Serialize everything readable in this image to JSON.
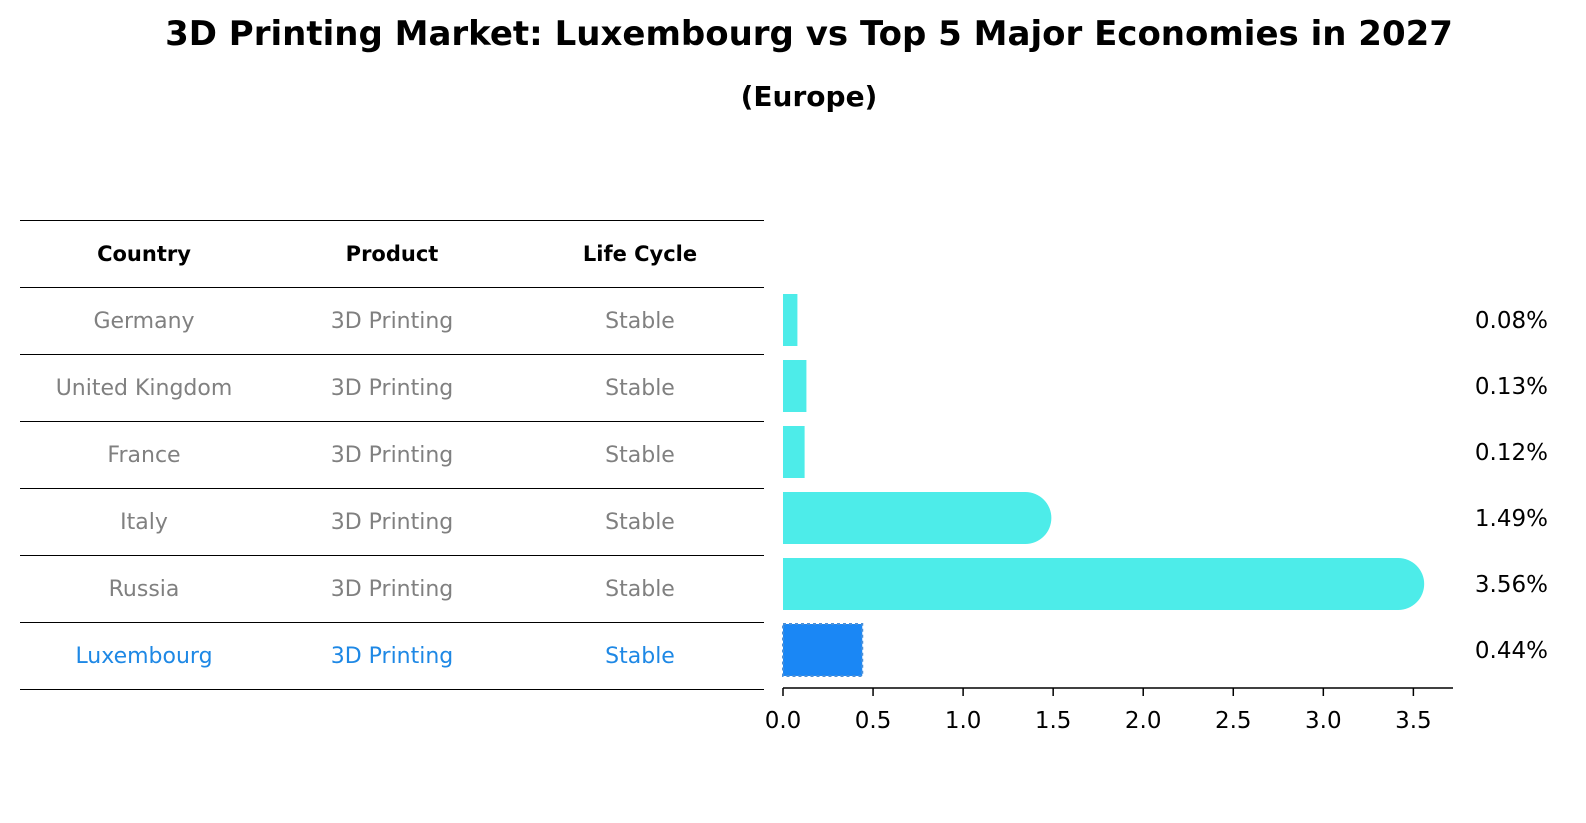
{
  "title": "3D Printing Market: Luxembourg vs Top 5 Major Economies in 2027",
  "subtitle": "(Europe)",
  "table": {
    "headers": [
      "Country",
      "Product",
      "Life Cycle"
    ],
    "rows": [
      [
        "Germany",
        "3D Printing",
        "Stable"
      ],
      [
        "United Kingdom",
        "3D Printing",
        "Stable"
      ],
      [
        "France",
        "3D Printing",
        "Stable"
      ],
      [
        "Italy",
        "3D Printing",
        "Stable"
      ],
      [
        "Russia",
        "3D Printing",
        "Stable"
      ],
      [
        "Luxembourg",
        "3D Printing",
        "Stable"
      ]
    ],
    "highlight_row": 5
  },
  "colors": {
    "bar": "#4dece9",
    "highlight_bar": "#1a87f5",
    "highlight_text": "#1e88e5",
    "muted_text": "#808080"
  },
  "chart_data": {
    "type": "bar",
    "orientation": "horizontal",
    "categories": [
      "Germany",
      "United Kingdom",
      "France",
      "Italy",
      "Russia",
      "Luxembourg"
    ],
    "values": [
      0.08,
      0.13,
      0.12,
      1.49,
      3.56,
      0.44
    ],
    "value_labels": [
      "0.08%",
      "0.13%",
      "0.12%",
      "1.49%",
      "3.56%",
      "0.44%"
    ],
    "xlim": [
      0,
      3.72
    ],
    "xticks": [
      0.0,
      0.5,
      1.0,
      1.5,
      2.0,
      2.5,
      3.0,
      3.5
    ],
    "xtick_labels": [
      "0.0",
      "0.5",
      "1.0",
      "1.5",
      "2.0",
      "2.5",
      "3.0",
      "3.5"
    ],
    "highlight_index": 5,
    "grid": false
  }
}
